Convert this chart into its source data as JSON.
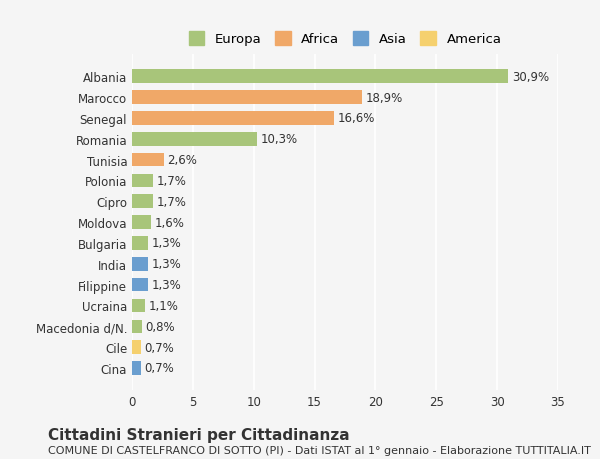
{
  "categories": [
    "Albania",
    "Marocco",
    "Senegal",
    "Romania",
    "Tunisia",
    "Polonia",
    "Cipro",
    "Moldova",
    "Bulgaria",
    "India",
    "Filippine",
    "Ucraina",
    "Macedonia d/N.",
    "Cile",
    "Cina"
  ],
  "values": [
    30.9,
    18.9,
    16.6,
    10.3,
    2.6,
    1.7,
    1.7,
    1.6,
    1.3,
    1.3,
    1.3,
    1.1,
    0.8,
    0.7,
    0.7
  ],
  "labels": [
    "30,9%",
    "18,9%",
    "16,6%",
    "10,3%",
    "2,6%",
    "1,7%",
    "1,7%",
    "1,6%",
    "1,3%",
    "1,3%",
    "1,3%",
    "1,1%",
    "0,8%",
    "0,7%",
    "0,7%"
  ],
  "colors": [
    "#a8c57a",
    "#f0a868",
    "#f0a868",
    "#a8c57a",
    "#f0a868",
    "#a8c57a",
    "#a8c57a",
    "#a8c57a",
    "#a8c57a",
    "#6a9ecf",
    "#6a9ecf",
    "#a8c57a",
    "#a8c57a",
    "#f5d06e",
    "#6a9ecf"
  ],
  "legend_labels": [
    "Europa",
    "Africa",
    "Asia",
    "America"
  ],
  "legend_colors": [
    "#a8c57a",
    "#f0a868",
    "#6a9ecf",
    "#f5d06e"
  ],
  "title": "Cittadini Stranieri per Cittadinanza",
  "subtitle": "COMUNE DI CASTELFRANCO DI SOTTO (PI) - Dati ISTAT al 1° gennaio - Elaborazione TUTTITALIA.IT",
  "xlim": [
    0,
    35
  ],
  "xticks": [
    0,
    5,
    10,
    15,
    20,
    25,
    30,
    35
  ],
  "bg_color": "#f5f5f5",
  "grid_color": "#ffffff",
  "text_color": "#333333",
  "title_fontsize": 11,
  "subtitle_fontsize": 8,
  "label_fontsize": 8.5,
  "tick_fontsize": 8.5,
  "legend_fontsize": 9.5
}
